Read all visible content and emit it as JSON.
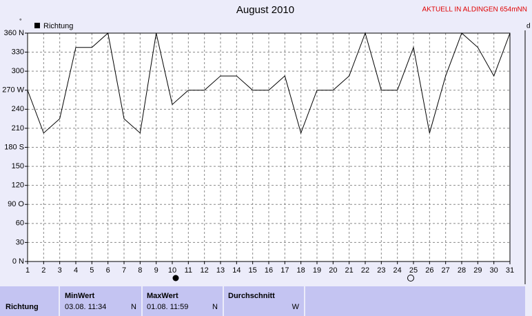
{
  "chart_data": {
    "type": "line",
    "title": "August 2010",
    "subtitle": "AKTUELL IN ALDINGEN 654mNN",
    "y_axis_label": "°",
    "y2_axis_label": "d",
    "x": [
      1,
      2,
      3,
      4,
      5,
      6,
      7,
      8,
      9,
      10,
      11,
      12,
      13,
      14,
      15,
      16,
      17,
      18,
      19,
      20,
      21,
      22,
      23,
      24,
      25,
      26,
      27,
      28,
      29,
      30,
      31
    ],
    "series": [
      {
        "name": "Richtung",
        "color": "#000000",
        "values": [
          270,
          202.5,
          225,
          337.5,
          337.5,
          360,
          225,
          202.5,
          360,
          247.5,
          270,
          270,
          292.5,
          292.5,
          270,
          270,
          292.5,
          202.5,
          270,
          270,
          292.5,
          360,
          270,
          270,
          337.5,
          202.5,
          292.5,
          360,
          337.5,
          292.5,
          360
        ]
      }
    ],
    "xlim": [
      1,
      31
    ],
    "xticks": [
      1,
      2,
      3,
      4,
      5,
      6,
      7,
      8,
      9,
      10,
      11,
      12,
      13,
      14,
      15,
      16,
      17,
      18,
      19,
      20,
      21,
      22,
      23,
      24,
      25,
      26,
      27,
      28,
      29,
      30,
      31
    ],
    "ylim": [
      0,
      360
    ],
    "yticks": [
      {
        "value": 0,
        "label": "0 N"
      },
      30,
      60,
      {
        "value": 90,
        "label": "90 O"
      },
      120,
      150,
      {
        "value": 180,
        "label": "180 S"
      },
      210,
      240,
      {
        "value": 270,
        "label": "270 W"
      },
      300,
      330,
      {
        "value": 360,
        "label": "360 N"
      }
    ],
    "grid": true,
    "legend": "top-left"
  },
  "stats": {
    "row_label": "Richtung",
    "min": {
      "label": "MinWert",
      "time": "03.08. 11:34",
      "dir": "N"
    },
    "max": {
      "label": "MaxWert",
      "time": "01.08. 11:59",
      "dir": "N"
    },
    "avg": {
      "label": "Durchschnitt",
      "dir": "W"
    }
  }
}
